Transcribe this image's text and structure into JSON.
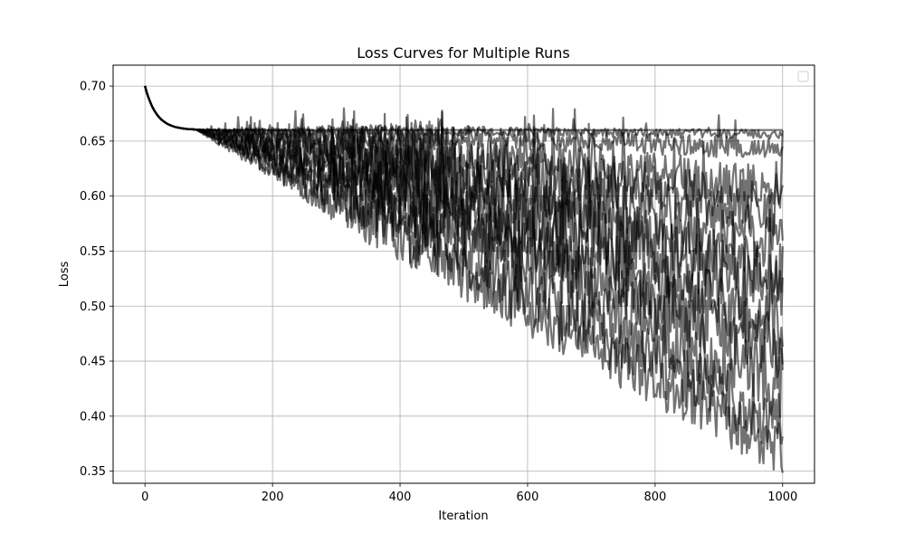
{
  "chart_data": {
    "type": "line",
    "title": "Loss Curves for Multiple Runs",
    "xlabel": "Iteration",
    "ylabel": "Loss",
    "xlim": [
      -50,
      1050
    ],
    "ylim": [
      0.339,
      0.719
    ],
    "xticks": [
      0,
      200,
      400,
      600,
      800,
      1000
    ],
    "yticks": [
      0.35,
      0.4,
      0.45,
      0.5,
      0.55,
      0.6,
      0.65,
      0.7
    ],
    "grid": true,
    "legend": {
      "position": "top-right",
      "entries": []
    },
    "line_color": "#000000",
    "line_opacity": 0.55,
    "plateau_loss": 0.66,
    "initial_loss": 0.7,
    "runs": [
      {
        "final_loss": 0.66,
        "noise": 0.0
      },
      {
        "final_loss": 0.655,
        "noise": 0.004
      },
      {
        "final_loss": 0.64,
        "noise": 0.01
      },
      {
        "final_loss": 0.6,
        "noise": 0.02
      },
      {
        "final_loss": 0.58,
        "noise": 0.025
      },
      {
        "final_loss": 0.55,
        "noise": 0.03
      },
      {
        "final_loss": 0.52,
        "noise": 0.03
      },
      {
        "final_loss": 0.5,
        "noise": 0.035
      },
      {
        "final_loss": 0.47,
        "noise": 0.03
      },
      {
        "final_loss": 0.45,
        "noise": 0.03
      },
      {
        "final_loss": 0.42,
        "noise": 0.035
      },
      {
        "final_loss": 0.38,
        "noise": 0.03
      },
      {
        "final_loss": 0.36,
        "noise": 0.025
      }
    ]
  }
}
